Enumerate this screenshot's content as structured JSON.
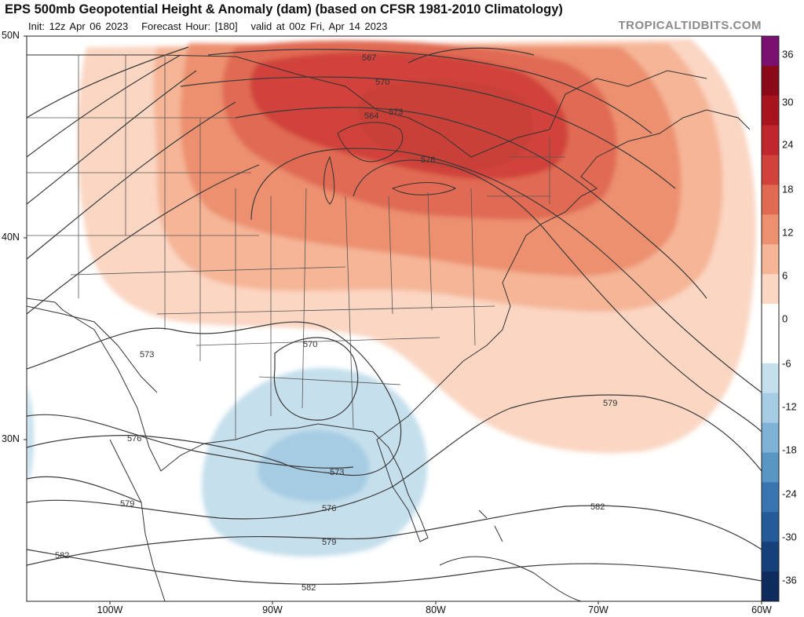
{
  "header": {
    "title": "EPS 500mb Geopotential Height & Anomaly (dam) (based on CFSR 1981-2010 Climatology)",
    "init": "Init: 12z Apr 06 2023",
    "forecast_hour": "Forecast Hour: [180]",
    "valid": "valid at 00z Fri, Apr 14 2023",
    "credit": "TROPICALTIDBITS.COM"
  },
  "map": {
    "lat_labels": [
      "50N",
      "40N",
      "30N"
    ],
    "lon_labels": [
      "100W",
      "90W",
      "80W",
      "70W",
      "60W"
    ],
    "contour_labels": [
      "567",
      "570",
      "573",
      "576",
      "564",
      "573",
      "570",
      "576",
      "579",
      "573",
      "576",
      "579",
      "579",
      "582",
      "582",
      "582"
    ],
    "anomaly_features": {
      "positive_max": "Great Lakes / Northeast US, +24 dam",
      "negative_min": "Northern Gulf of Mexico, -12 dam"
    }
  },
  "colorbar": {
    "labels": [
      "36",
      "30",
      "24",
      "18",
      "12",
      "6",
      "0",
      "-6",
      "-12",
      "-18",
      "-24",
      "-30",
      "-36"
    ],
    "colors": [
      "#7a1070",
      "#8b0a1a",
      "#a8141e",
      "#c0272d",
      "#d0423a",
      "#e06b52",
      "#ec906f",
      "#f5b596",
      "#fbd6c3",
      "#ffffff",
      "#ffffff",
      "#c5dfec",
      "#a6cce3",
      "#7fb3d5",
      "#5896c4",
      "#3875b0",
      "#245a98",
      "#15407a",
      "#0d2b5c"
    ]
  }
}
